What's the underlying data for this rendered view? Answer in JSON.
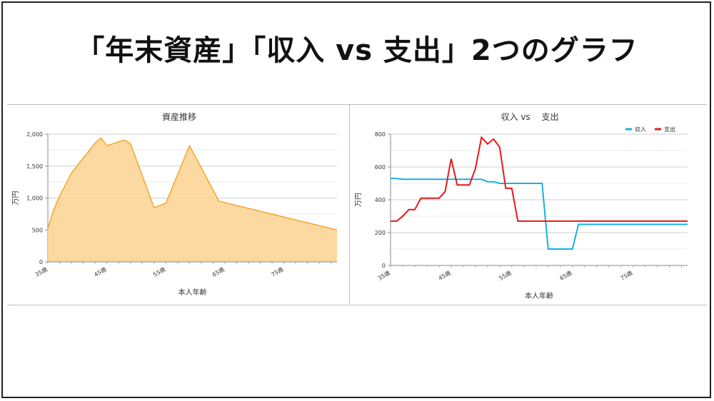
{
  "page": {
    "title": "「年末資産」「収入 vs 支出」2つのグラフ"
  },
  "chart_data": [
    {
      "type": "area",
      "title": "資産推移",
      "xlabel": "本人年齢",
      "ylabel": "万円",
      "xlim": [
        35,
        84
      ],
      "ylim": [
        0,
        2000
      ],
      "y_ticks": [
        "0",
        "500",
        "1,000",
        "1,500",
        "2,000"
      ],
      "x_tick_labels": [
        "35歳",
        "45歳",
        "55歳",
        "65歳",
        "75歳"
      ],
      "x_tick_values": [
        35,
        45,
        55,
        65,
        75
      ],
      "grid": true,
      "colors": {
        "fill": "#fcd597",
        "line": "#f39c12"
      },
      "x": [
        35,
        36,
        37,
        39,
        43,
        44,
        45,
        48,
        49,
        53,
        55,
        59,
        64,
        84
      ],
      "values": [
        530,
        820,
        1030,
        1390,
        1860,
        1940,
        1820,
        1910,
        1850,
        850,
        920,
        1820,
        950,
        500
      ]
    },
    {
      "type": "line",
      "title": "収入 vs 　支出",
      "xlabel": "本人年齢",
      "ylabel": "万円",
      "xlim": [
        35,
        84
      ],
      "ylim": [
        0,
        800
      ],
      "y_ticks": [
        "0",
        "200",
        "400",
        "600",
        "800"
      ],
      "x_tick_labels": [
        "35歳",
        "45歳",
        "55歳",
        "65歳",
        "75歳"
      ],
      "x_tick_values": [
        35,
        45,
        55,
        65,
        75
      ],
      "grid": true,
      "legend": "top-right",
      "x": [
        35,
        36,
        37,
        38,
        39,
        40,
        41,
        42,
        43,
        44,
        45,
        46,
        47,
        48,
        49,
        50,
        51,
        52,
        53,
        54,
        55,
        56,
        57,
        58,
        59,
        60,
        61,
        62,
        63,
        64,
        65,
        66,
        67,
        68,
        69,
        70,
        71,
        72,
        73,
        74,
        75,
        76,
        77,
        78,
        79,
        80,
        81,
        82,
        83,
        84
      ],
      "series": [
        {
          "name": "収入",
          "color": "#1ab0e0",
          "values": [
            530,
            530,
            525,
            525,
            525,
            525,
            525,
            525,
            525,
            525,
            525,
            525,
            525,
            525,
            525,
            525,
            510,
            510,
            500,
            500,
            500,
            500,
            500,
            500,
            500,
            500,
            100,
            100,
            100,
            100,
            100,
            250,
            250,
            250,
            250,
            250,
            250,
            250,
            250,
            250,
            250,
            250,
            250,
            250,
            250,
            250,
            250,
            250,
            250,
            250
          ]
        },
        {
          "name": "支出",
          "color": "#e81818",
          "values": [
            270,
            270,
            300,
            340,
            340,
            410,
            410,
            410,
            410,
            450,
            650,
            490,
            490,
            490,
            590,
            780,
            740,
            770,
            720,
            470,
            470,
            270,
            270,
            270,
            270,
            270,
            270,
            270,
            270,
            270,
            270,
            270,
            270,
            270,
            270,
            270,
            270,
            270,
            270,
            270,
            270,
            270,
            270,
            270,
            270,
            270,
            270,
            270,
            270,
            270
          ]
        }
      ]
    }
  ]
}
